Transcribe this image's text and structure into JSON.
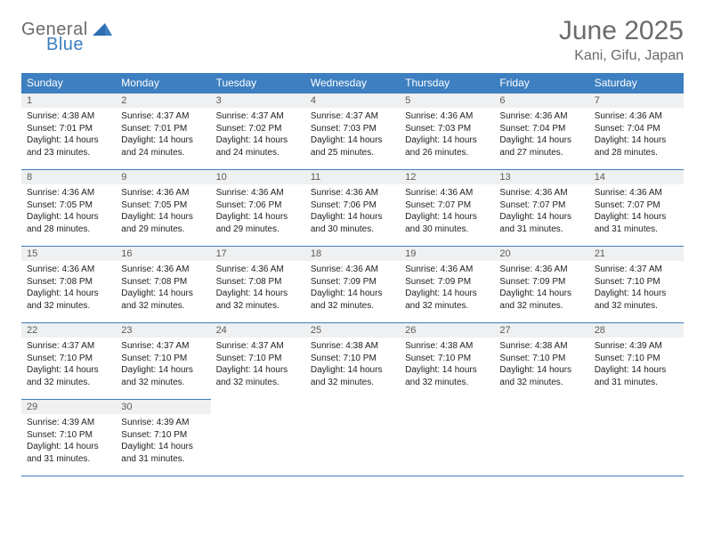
{
  "logo": {
    "word1": "General",
    "word2": "Blue"
  },
  "title": "June 2025",
  "location": "Kani, Gifu, Japan",
  "colors": {
    "header_bg": "#3d7fc0",
    "header_text": "#ffffff",
    "daynum_bg": "#eef0f1",
    "rule": "#3d7fc0"
  },
  "weekdays": [
    "Sunday",
    "Monday",
    "Tuesday",
    "Wednesday",
    "Thursday",
    "Friday",
    "Saturday"
  ],
  "weeks": [
    [
      {
        "n": "1",
        "sr": "Sunrise: 4:38 AM",
        "ss": "Sunset: 7:01 PM",
        "dl": "Daylight: 14 hours and 23 minutes."
      },
      {
        "n": "2",
        "sr": "Sunrise: 4:37 AM",
        "ss": "Sunset: 7:01 PM",
        "dl": "Daylight: 14 hours and 24 minutes."
      },
      {
        "n": "3",
        "sr": "Sunrise: 4:37 AM",
        "ss": "Sunset: 7:02 PM",
        "dl": "Daylight: 14 hours and 24 minutes."
      },
      {
        "n": "4",
        "sr": "Sunrise: 4:37 AM",
        "ss": "Sunset: 7:03 PM",
        "dl": "Daylight: 14 hours and 25 minutes."
      },
      {
        "n": "5",
        "sr": "Sunrise: 4:36 AM",
        "ss": "Sunset: 7:03 PM",
        "dl": "Daylight: 14 hours and 26 minutes."
      },
      {
        "n": "6",
        "sr": "Sunrise: 4:36 AM",
        "ss": "Sunset: 7:04 PM",
        "dl": "Daylight: 14 hours and 27 minutes."
      },
      {
        "n": "7",
        "sr": "Sunrise: 4:36 AM",
        "ss": "Sunset: 7:04 PM",
        "dl": "Daylight: 14 hours and 28 minutes."
      }
    ],
    [
      {
        "n": "8",
        "sr": "Sunrise: 4:36 AM",
        "ss": "Sunset: 7:05 PM",
        "dl": "Daylight: 14 hours and 28 minutes."
      },
      {
        "n": "9",
        "sr": "Sunrise: 4:36 AM",
        "ss": "Sunset: 7:05 PM",
        "dl": "Daylight: 14 hours and 29 minutes."
      },
      {
        "n": "10",
        "sr": "Sunrise: 4:36 AM",
        "ss": "Sunset: 7:06 PM",
        "dl": "Daylight: 14 hours and 29 minutes."
      },
      {
        "n": "11",
        "sr": "Sunrise: 4:36 AM",
        "ss": "Sunset: 7:06 PM",
        "dl": "Daylight: 14 hours and 30 minutes."
      },
      {
        "n": "12",
        "sr": "Sunrise: 4:36 AM",
        "ss": "Sunset: 7:07 PM",
        "dl": "Daylight: 14 hours and 30 minutes."
      },
      {
        "n": "13",
        "sr": "Sunrise: 4:36 AM",
        "ss": "Sunset: 7:07 PM",
        "dl": "Daylight: 14 hours and 31 minutes."
      },
      {
        "n": "14",
        "sr": "Sunrise: 4:36 AM",
        "ss": "Sunset: 7:07 PM",
        "dl": "Daylight: 14 hours and 31 minutes."
      }
    ],
    [
      {
        "n": "15",
        "sr": "Sunrise: 4:36 AM",
        "ss": "Sunset: 7:08 PM",
        "dl": "Daylight: 14 hours and 32 minutes."
      },
      {
        "n": "16",
        "sr": "Sunrise: 4:36 AM",
        "ss": "Sunset: 7:08 PM",
        "dl": "Daylight: 14 hours and 32 minutes."
      },
      {
        "n": "17",
        "sr": "Sunrise: 4:36 AM",
        "ss": "Sunset: 7:08 PM",
        "dl": "Daylight: 14 hours and 32 minutes."
      },
      {
        "n": "18",
        "sr": "Sunrise: 4:36 AM",
        "ss": "Sunset: 7:09 PM",
        "dl": "Daylight: 14 hours and 32 minutes."
      },
      {
        "n": "19",
        "sr": "Sunrise: 4:36 AM",
        "ss": "Sunset: 7:09 PM",
        "dl": "Daylight: 14 hours and 32 minutes."
      },
      {
        "n": "20",
        "sr": "Sunrise: 4:36 AM",
        "ss": "Sunset: 7:09 PM",
        "dl": "Daylight: 14 hours and 32 minutes."
      },
      {
        "n": "21",
        "sr": "Sunrise: 4:37 AM",
        "ss": "Sunset: 7:10 PM",
        "dl": "Daylight: 14 hours and 32 minutes."
      }
    ],
    [
      {
        "n": "22",
        "sr": "Sunrise: 4:37 AM",
        "ss": "Sunset: 7:10 PM",
        "dl": "Daylight: 14 hours and 32 minutes."
      },
      {
        "n": "23",
        "sr": "Sunrise: 4:37 AM",
        "ss": "Sunset: 7:10 PM",
        "dl": "Daylight: 14 hours and 32 minutes."
      },
      {
        "n": "24",
        "sr": "Sunrise: 4:37 AM",
        "ss": "Sunset: 7:10 PM",
        "dl": "Daylight: 14 hours and 32 minutes."
      },
      {
        "n": "25",
        "sr": "Sunrise: 4:38 AM",
        "ss": "Sunset: 7:10 PM",
        "dl": "Daylight: 14 hours and 32 minutes."
      },
      {
        "n": "26",
        "sr": "Sunrise: 4:38 AM",
        "ss": "Sunset: 7:10 PM",
        "dl": "Daylight: 14 hours and 32 minutes."
      },
      {
        "n": "27",
        "sr": "Sunrise: 4:38 AM",
        "ss": "Sunset: 7:10 PM",
        "dl": "Daylight: 14 hours and 32 minutes."
      },
      {
        "n": "28",
        "sr": "Sunrise: 4:39 AM",
        "ss": "Sunset: 7:10 PM",
        "dl": "Daylight: 14 hours and 31 minutes."
      }
    ],
    [
      {
        "n": "29",
        "sr": "Sunrise: 4:39 AM",
        "ss": "Sunset: 7:10 PM",
        "dl": "Daylight: 14 hours and 31 minutes."
      },
      {
        "n": "30",
        "sr": "Sunrise: 4:39 AM",
        "ss": "Sunset: 7:10 PM",
        "dl": "Daylight: 14 hours and 31 minutes."
      },
      null,
      null,
      null,
      null,
      null
    ]
  ]
}
